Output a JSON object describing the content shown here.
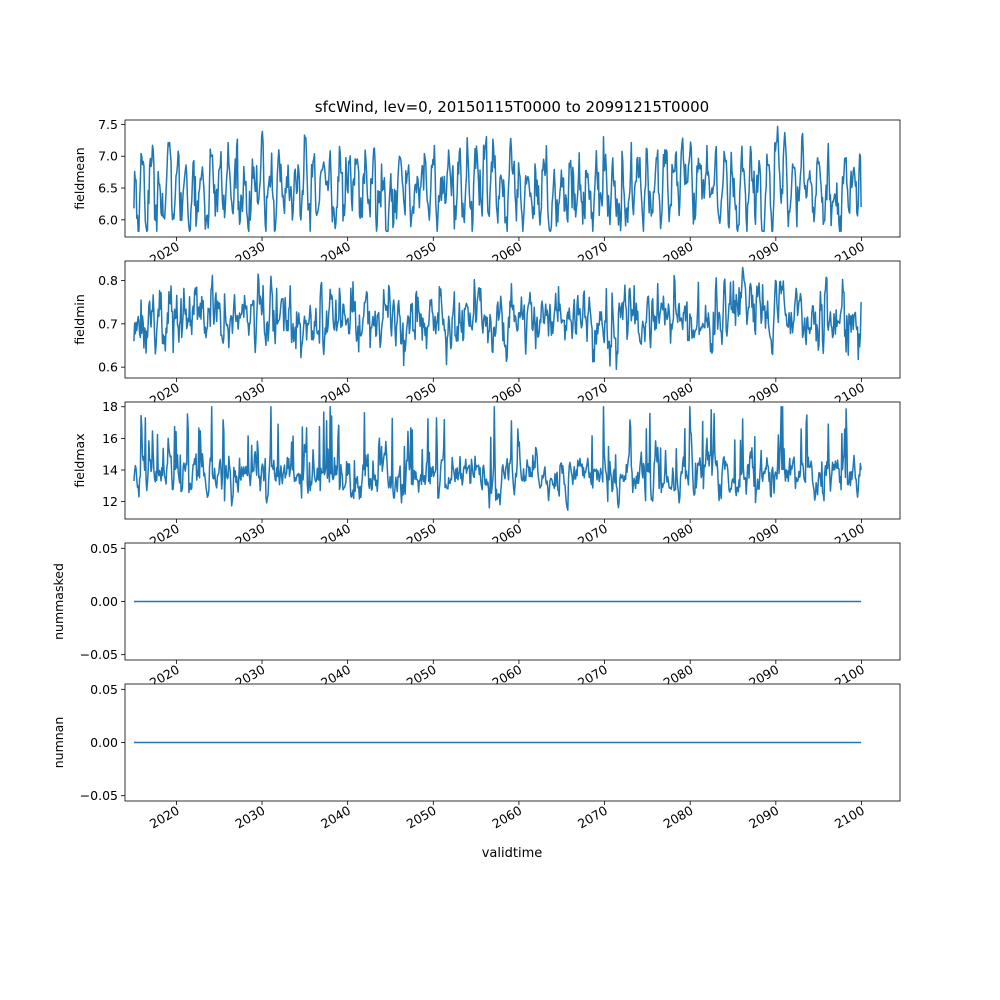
{
  "figure": {
    "title": "sfcWind, lev=0, 20150115T0000 to 20991215T0000",
    "xlabel": "validtime"
  },
  "colors": {
    "line": "#1f77b4",
    "axes": "#000000",
    "background": "#ffffff"
  },
  "chart_data": [
    {
      "type": "line",
      "ylabel": "fieldmean",
      "x_range": [
        "2015-01-15",
        "2099-12-15"
      ],
      "xlim": [
        2014.0,
        2104.5
      ],
      "ylim": [
        5.73,
        7.57
      ],
      "yticks": [
        6.0,
        6.5,
        7.0,
        7.5
      ],
      "ytick_labels": [
        "6.0",
        "6.5",
        "7.0",
        "7.5"
      ],
      "xticks": [
        2020,
        2030,
        2040,
        2050,
        2060,
        2070,
        2080,
        2090,
        2100
      ],
      "xtick_labels": [
        "2020",
        "2030",
        "2040",
        "2050",
        "2060",
        "2070",
        "2080",
        "2090",
        "2100"
      ],
      "start_value": 6.18,
      "end_value": 6.2,
      "series_stats": {
        "mean": 6.5,
        "approx_min": 5.82,
        "approx_max": 7.47
      },
      "seasonal_amplitude": 0.38,
      "noise_level": 0.22,
      "grid": false
    },
    {
      "type": "line",
      "ylabel": "fieldmin",
      "x_range": [
        "2015-01-15",
        "2099-12-15"
      ],
      "xlim": [
        2014.0,
        2104.5
      ],
      "ylim": [
        0.575,
        0.845
      ],
      "yticks": [
        0.6,
        0.7,
        0.8
      ],
      "ytick_labels": [
        "0.6",
        "0.7",
        "0.8"
      ],
      "xticks": [
        2020,
        2030,
        2040,
        2050,
        2060,
        2070,
        2080,
        2090,
        2100
      ],
      "xtick_labels": [
        "2020",
        "2030",
        "2040",
        "2050",
        "2060",
        "2070",
        "2080",
        "2090",
        "2100"
      ],
      "start_value": 0.66,
      "end_value": 0.75,
      "series_stats": {
        "mean": 0.715,
        "approx_min": 0.585,
        "approx_max": 0.83
      },
      "seasonal_amplitude": 0.01,
      "noise_level": 0.032,
      "grid": false
    },
    {
      "type": "line",
      "ylabel": "fieldmax",
      "x_range": [
        "2015-01-15",
        "2099-12-15"
      ],
      "xlim": [
        2014.0,
        2104.5
      ],
      "ylim": [
        10.9,
        18.3
      ],
      "yticks": [
        12,
        14,
        16,
        18
      ],
      "ytick_labels": [
        "12",
        "14",
        "16",
        "18"
      ],
      "xticks": [
        2020,
        2030,
        2040,
        2050,
        2060,
        2070,
        2080,
        2090,
        2100
      ],
      "xtick_labels": [
        "2020",
        "2030",
        "2040",
        "2050",
        "2060",
        "2070",
        "2080",
        "2090",
        "2100"
      ],
      "start_value": 13.3,
      "end_value": 14.0,
      "series_stats": {
        "mean": 13.6,
        "approx_min": 11.2,
        "approx_max": 18.0
      },
      "seasonal_amplitude": 0.5,
      "noise_level": 0.55,
      "spike_probability": 0.09,
      "grid": false
    },
    {
      "type": "line",
      "ylabel": "nummasked",
      "x_range": [
        "2015-01-15",
        "2099-12-15"
      ],
      "xlim": [
        2014.0,
        2104.5
      ],
      "ylim": [
        -0.055,
        0.055
      ],
      "yticks": [
        -0.05,
        0.0,
        0.05
      ],
      "ytick_labels": [
        "−0.05",
        "0.00",
        "0.05"
      ],
      "xticks": [
        2020,
        2030,
        2040,
        2050,
        2060,
        2070,
        2080,
        2090,
        2100
      ],
      "xtick_labels": [
        "2020",
        "2030",
        "2040",
        "2050",
        "2060",
        "2070",
        "2080",
        "2090",
        "2100"
      ],
      "constant_value": 0.0,
      "grid": false
    },
    {
      "type": "line",
      "ylabel": "numnan",
      "x_range": [
        "2015-01-15",
        "2099-12-15"
      ],
      "xlim": [
        2014.0,
        2104.5
      ],
      "ylim": [
        -0.055,
        0.055
      ],
      "yticks": [
        -0.05,
        0.0,
        0.05
      ],
      "ytick_labels": [
        "−0.05",
        "0.00",
        "0.05"
      ],
      "xticks": [
        2020,
        2030,
        2040,
        2050,
        2060,
        2070,
        2080,
        2090,
        2100
      ],
      "xtick_labels": [
        "2020",
        "2030",
        "2040",
        "2050",
        "2060",
        "2070",
        "2080",
        "2090",
        "2100"
      ],
      "constant_value": 0.0,
      "grid": false
    }
  ]
}
